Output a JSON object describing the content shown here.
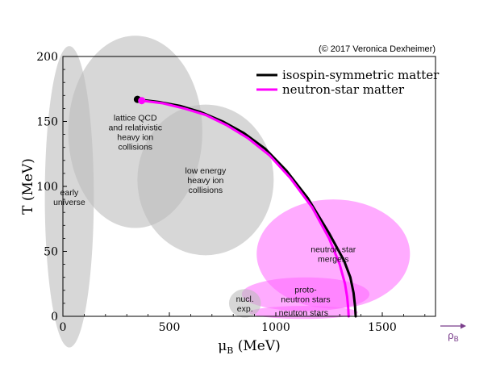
{
  "chart_data": {
    "type": "line",
    "title": "",
    "copyright": "(© 2017 Veronica Dexheimer)",
    "xlabel": "μ",
    "xlabel_sub": "B",
    "xlabel_unit": " (MeV)",
    "ylabel": "T (MeV)",
    "xlim": [
      0,
      1750
    ],
    "ylim": [
      0,
      200
    ],
    "x_ticks": [
      0,
      500,
      1000,
      1500
    ],
    "y_ticks": [
      0,
      50,
      100,
      150,
      200
    ],
    "x_tick_labels": [
      "0",
      "500",
      "1000",
      "1500"
    ],
    "y_tick_labels": [
      "0",
      "50",
      "100",
      "150",
      "200"
    ],
    "grid": false,
    "legend_position": "top-right",
    "density_arrow_label": "ρ",
    "density_arrow_sub": "B",
    "colors": {
      "isospin": "#000000",
      "neutron": "#ff00ff",
      "gray_region": "#bdbdbd",
      "pink_region": "#ff66ff",
      "arrow": "#7b3f8c"
    },
    "series": [
      {
        "name": "isospin-symmetric matter",
        "color": "#000000",
        "x": [
          350,
          450,
          550,
          650,
          750,
          850,
          950,
          1050,
          1150,
          1250,
          1320,
          1350,
          1365,
          1372,
          1375
        ],
        "y": [
          167,
          165,
          162,
          157,
          150,
          141,
          129,
          112,
          91,
          64,
          43,
          30,
          18,
          8,
          0
        ]
      },
      {
        "name": "neutron-star matter",
        "color": "#ff00ff",
        "x": [
          370,
          470,
          570,
          670,
          770,
          870,
          970,
          1070,
          1170,
          1250,
          1300,
          1325,
          1335,
          1340,
          1342
        ],
        "y": [
          166,
          164,
          160,
          155,
          147,
          137,
          124,
          106,
          84,
          60,
          40,
          25,
          15,
          6,
          0
        ]
      }
    ],
    "regions": [
      {
        "label": "lattice QCD\nand relativistic\nheavy ion\ncollisions",
        "fill": "gray",
        "cx": 340,
        "cy": 142,
        "rx": 315,
        "ry": 74
      },
      {
        "label": "early\nuniverse",
        "fill": "gray",
        "cx": 30,
        "cy": 92,
        "rx": 115,
        "ry": 116
      },
      {
        "label": "low energy\nheavy ion\ncollisions",
        "fill": "gray",
        "cx": 670,
        "cy": 105,
        "rx": 320,
        "ry": 58
      },
      {
        "label": "neutron star\nmergers",
        "fill": "pink",
        "cx": 1270,
        "cy": 48,
        "rx": 360,
        "ry": 42
      },
      {
        "label": "proto-\nneutron stars",
        "fill": "pink",
        "cx": 1140,
        "cy": 17,
        "rx": 300,
        "ry": 13
      },
      {
        "label": "neutron stars",
        "fill": "pink",
        "cx": 1130,
        "cy": 3,
        "rx": 255,
        "ry": 5
      },
      {
        "label": "nucl.\nexp.",
        "fill": "gray",
        "cx": 855,
        "cy": 10,
        "rx": 75,
        "ry": 11
      }
    ],
    "critical_points": [
      {
        "series": "isospin-symmetric matter",
        "x": 350,
        "y": 167
      },
      {
        "series": "neutron-star matter",
        "x": 370,
        "y": 166
      }
    ]
  }
}
